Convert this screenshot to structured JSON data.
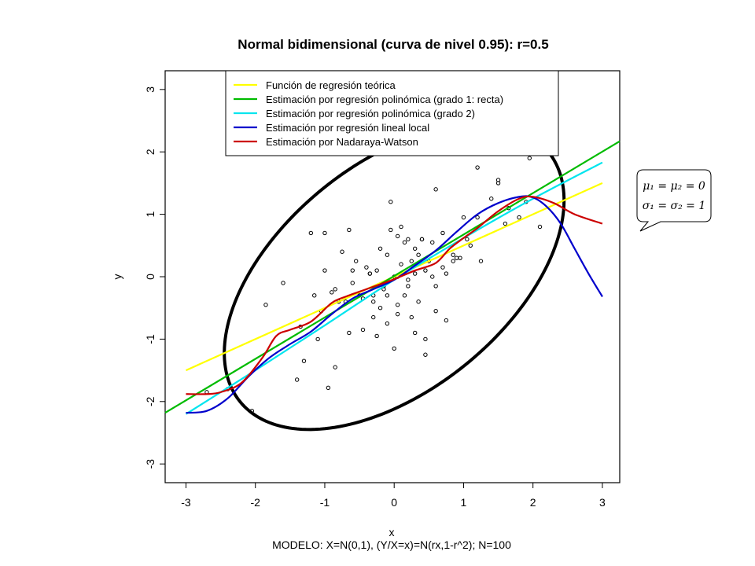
{
  "chart_data": {
    "type": "scatter",
    "title": "Normal bidimensional (curva de nivel 0.95): r=0.5",
    "xlabel": "x",
    "ylabel": "y",
    "caption": "MODELO: X=N(0,1), (Y/X=x)=N(rx,1-r^2); N=100",
    "xlim": [
      -3.3,
      3.25
    ],
    "ylim": [
      -3.3,
      3.3
    ],
    "xticks": [
      "-3",
      "-2",
      "-1",
      "0",
      "1",
      "2",
      "3"
    ],
    "yticks": [
      "-3",
      "-2",
      "-1",
      "0",
      "1",
      "2",
      "3"
    ],
    "grid": false,
    "legend_position": "top-center",
    "annotation_lines": [
      "μ₁ = μ₂ = 0",
      "σ₁ = σ₂ = 1"
    ],
    "ellipse": {
      "r": 0.5,
      "level": 0.95,
      "color": "#000000"
    },
    "series": [
      {
        "name": "Función de regresión teórica",
        "color": "#ffff00",
        "x": [
          -3,
          3
        ],
        "y": [
          -1.5,
          1.5
        ]
      },
      {
        "name": "Estimación por regresión polinómica (grado 1: recta)",
        "color": "#00bb00",
        "x": [
          -3.3,
          3.25
        ],
        "y": [
          -2.18,
          2.17
        ]
      },
      {
        "name": "Estimación por regresión polinómica (grado 2)",
        "color": "#00e5ee",
        "x": [
          -3,
          -2,
          -1,
          0,
          1,
          2,
          3
        ],
        "y": [
          -2.2,
          -1.5,
          -0.78,
          -0.05,
          0.62,
          1.25,
          1.83
        ]
      },
      {
        "name": "Estimación por regresión lineal local",
        "color": "#0000cc",
        "x": [
          -3,
          -2.7,
          -2.4,
          -2.1,
          -1.8,
          -1.5,
          -1.2,
          -0.9,
          -0.6,
          -0.3,
          0,
          0.3,
          0.6,
          0.9,
          1.2,
          1.5,
          1.8,
          2.0,
          2.2,
          2.4,
          2.6,
          2.8,
          3.0
        ],
        "y": [
          -2.18,
          -2.15,
          -1.95,
          -1.6,
          -1.3,
          -1.08,
          -0.88,
          -0.6,
          -0.35,
          -0.2,
          -0.05,
          0.18,
          0.42,
          0.72,
          1.0,
          1.18,
          1.28,
          1.27,
          1.12,
          0.85,
          0.45,
          0.05,
          -0.32
        ]
      },
      {
        "name": "Estimación por Nadaraya-Watson",
        "color": "#cc0000",
        "x": [
          -3,
          -2.7,
          -2.5,
          -2.2,
          -1.9,
          -1.7,
          -1.5,
          -1.2,
          -0.9,
          -0.7,
          -0.4,
          -0.2,
          0,
          0.3,
          0.6,
          0.8,
          1.0,
          1.2,
          1.5,
          1.8,
          2.0,
          2.3,
          2.6,
          3.0
        ],
        "y": [
          -1.88,
          -1.88,
          -1.85,
          -1.7,
          -1.3,
          -0.95,
          -0.85,
          -0.72,
          -0.42,
          -0.32,
          -0.2,
          -0.12,
          -0.04,
          0.1,
          0.22,
          0.45,
          0.62,
          0.78,
          1.05,
          1.25,
          1.28,
          1.18,
          1.0,
          0.85
        ]
      }
    ],
    "points": {
      "x": [
        -1.85,
        -1.35,
        -1.1,
        -1.15,
        -1.3,
        -0.95,
        -0.85,
        -0.65,
        -0.45,
        -0.3,
        -0.1,
        -0.2,
        -0.1,
        0.05,
        0.3,
        0.45,
        0.6,
        0.75,
        0.9,
        1.05,
        1.2,
        1.4,
        1.5,
        1.65,
        1.8,
        1.95,
        2.1,
        1.5,
        1.2,
        1.0,
        0.85,
        0.7,
        0.55,
        0.4,
        0.35,
        0.25,
        0.1,
        0.0,
        -0.15,
        -0.3,
        -0.5,
        -0.7,
        -0.9,
        -1.05,
        -0.8,
        -0.6,
        -0.4,
        -0.25,
        0.05,
        0.2,
        0.3,
        0.45,
        0.6,
        0.75,
        0.95,
        1.1,
        0.5,
        0.3,
        0.15,
        0.05,
        -0.05,
        -0.2,
        -0.35,
        -0.55,
        -0.75,
        -1.0,
        -1.2,
        -1.0,
        -0.85,
        -0.6,
        -0.45,
        -0.3,
        -0.15,
        0.05,
        0.2,
        0.35,
        0.55,
        0.7,
        0.85,
        1.25,
        1.6,
        1.9,
        0.1,
        -0.05,
        0.4,
        0.6,
        0.2,
        -0.1,
        -0.35,
        -0.65,
        -1.4,
        -1.6,
        -2.05,
        -2.7,
        -2.4,
        0.45,
        0.25,
        -0.25,
        0.0,
        0.15
      ],
      "y": [
        -0.45,
        -0.8,
        -1.0,
        -0.3,
        -1.35,
        -1.78,
        -1.45,
        -0.9,
        -0.85,
        -0.65,
        -0.75,
        -0.5,
        -0.3,
        -0.6,
        -0.9,
        -1.0,
        -0.55,
        -0.7,
        0.3,
        0.6,
        0.95,
        1.25,
        1.55,
        1.1,
        0.95,
        1.9,
        0.8,
        1.5,
        1.75,
        0.95,
        0.25,
        0.7,
        0.55,
        0.6,
        0.35,
        0.25,
        0.2,
        0.0,
        -0.15,
        -0.4,
        -0.3,
        -0.4,
        -0.25,
        -0.55,
        -0.4,
        0.1,
        0.15,
        0.1,
        0.0,
        -0.05,
        0.05,
        0.1,
        -0.15,
        0.05,
        0.3,
        0.5,
        0.25,
        0.45,
        0.55,
        0.65,
        0.75,
        0.45,
        0.05,
        0.25,
        0.4,
        0.7,
        0.7,
        0.1,
        -0.2,
        -0.1,
        -0.35,
        -0.3,
        -0.2,
        -0.45,
        -0.15,
        -0.4,
        0.0,
        0.15,
        0.35,
        0.25,
        0.85,
        1.2,
        0.8,
        1.2,
        0.6,
        1.4,
        0.6,
        0.35,
        0.05,
        0.75,
        -1.65,
        -0.1,
        -2.15,
        -1.85,
        -1.8,
        -1.25,
        -0.65,
        -0.95,
        -1.15,
        -0.3
      ]
    }
  }
}
